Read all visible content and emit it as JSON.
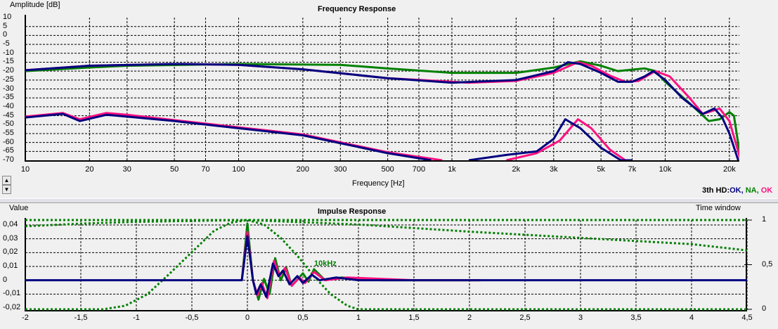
{
  "chart_data": [
    {
      "type": "line",
      "title": "Frequency Response",
      "xlabel": "Frequency [Hz]",
      "ylabel": "Amplitude [dB]",
      "xscale": "log",
      "xlim": [
        10,
        22600
      ],
      "ylim": [
        -70,
        10
      ],
      "yticks": [
        "10",
        "5",
        "0",
        "-5",
        "-10",
        "-15",
        "-20",
        "-25",
        "-30",
        "-35",
        "-40",
        "-45",
        "-50",
        "-55",
        "-60",
        "-65",
        "-70"
      ],
      "xticks": [
        {
          "v": 10,
          "l": "10"
        },
        {
          "v": 20,
          "l": "20"
        },
        {
          "v": 30,
          "l": "30"
        },
        {
          "v": 50,
          "l": "50"
        },
        {
          "v": 70,
          "l": "70"
        },
        {
          "v": 100,
          "l": "100"
        },
        {
          "v": 200,
          "l": "200"
        },
        {
          "v": 300,
          "l": "300"
        },
        {
          "v": 500,
          "l": "500"
        },
        {
          "v": 700,
          "l": "700"
        },
        {
          "v": 1000,
          "l": "1k"
        },
        {
          "v": 2000,
          "l": "2k"
        },
        {
          "v": 3000,
          "l": "3k"
        },
        {
          "v": 5000,
          "l": "5k"
        },
        {
          "v": 7000,
          "l": "7k"
        },
        {
          "v": 10000,
          "l": "10k"
        },
        {
          "v": 20000,
          "l": "20k"
        }
      ],
      "legend": {
        "prefix": "3th HD:",
        "items": [
          {
            "label": "OK, ",
            "color": "#000080"
          },
          {
            "label": "NA, ",
            "color": "#008000"
          },
          {
            "label": "OK",
            "color": "#ff1080"
          }
        ]
      },
      "series": [
        {
          "name": "green",
          "color": "#008000",
          "points": [
            [
              10,
              -20
            ],
            [
              20,
              -18
            ],
            [
              30,
              -17
            ],
            [
              100,
              -16
            ],
            [
              300,
              -16.5
            ],
            [
              500,
              -18.5
            ],
            [
              1000,
              -21
            ],
            [
              2000,
              -21
            ],
            [
              3000,
              -18
            ],
            [
              4000,
              -14.5
            ],
            [
              5000,
              -17
            ],
            [
              6000,
              -20
            ],
            [
              8000,
              -18.5
            ],
            [
              9000,
              -20
            ],
            [
              10000,
              -26
            ],
            [
              13000,
              -38
            ],
            [
              16000,
              -48
            ],
            [
              18000,
              -47
            ],
            [
              20000,
              -43
            ],
            [
              21000,
              -45
            ],
            [
              22600,
              -70
            ]
          ]
        },
        {
          "name": "pink",
          "color": "#ff1080",
          "points": [
            [
              10,
              -19.5
            ],
            [
              20,
              -17
            ],
            [
              50,
              -16
            ],
            [
              100,
              -16.5
            ],
            [
              200,
              -19
            ],
            [
              500,
              -24
            ],
            [
              1200,
              -26.5
            ],
            [
              2000,
              -25.5
            ],
            [
              3000,
              -21
            ],
            [
              3900,
              -15
            ],
            [
              4500,
              -17
            ],
            [
              5500,
              -22.5
            ],
            [
              6500,
              -26
            ],
            [
              7500,
              -25.5
            ],
            [
              9000,
              -20
            ],
            [
              10500,
              -23
            ],
            [
              13000,
              -35
            ],
            [
              15000,
              -44
            ],
            [
              18000,
              -41
            ],
            [
              20000,
              -48
            ],
            [
              22600,
              -70
            ]
          ]
        },
        {
          "name": "blue",
          "color": "#000080",
          "points": [
            [
              10,
              -19.5
            ],
            [
              20,
              -17
            ],
            [
              50,
              -16
            ],
            [
              100,
              -16.5
            ],
            [
              200,
              -19
            ],
            [
              500,
              -24
            ],
            [
              1000,
              -26.5
            ],
            [
              2000,
              -25
            ],
            [
              3000,
              -20
            ],
            [
              3500,
              -15
            ],
            [
              4000,
              -16
            ],
            [
              5000,
              -21
            ],
            [
              6000,
              -26
            ],
            [
              7000,
              -26
            ],
            [
              8000,
              -23
            ],
            [
              8800,
              -20
            ],
            [
              10000,
              -25
            ],
            [
              12000,
              -35
            ],
            [
              15000,
              -44
            ],
            [
              17000,
              -41
            ],
            [
              18500,
              -46
            ],
            [
              20000,
              -55
            ],
            [
              22000,
              -70
            ]
          ]
        },
        {
          "name": "pink-hd",
          "color": "#ff1080",
          "points": [
            [
              10,
              -45.5
            ],
            [
              15,
              -43.5
            ],
            [
              18,
              -47
            ],
            [
              24,
              -43.5
            ],
            [
              30,
              -44.5
            ],
            [
              50,
              -47.5
            ],
            [
              100,
              -51.5
            ],
            [
              200,
              -55.5
            ],
            [
              500,
              -65.5
            ],
            [
              900,
              -70
            ]
          ],
          "points2": [
            [
              1800,
              -70
            ],
            [
              2500,
              -66
            ],
            [
              3200,
              -59
            ],
            [
              3900,
              -47
            ],
            [
              4500,
              -52
            ],
            [
              5500,
              -64
            ],
            [
              6500,
              -70
            ],
            [
              7000,
              -70
            ]
          ]
        },
        {
          "name": "blue-hd",
          "color": "#000080",
          "points": [
            [
              10,
              -46
            ],
            [
              15,
              -44
            ],
            [
              18,
              -48
            ],
            [
              24,
              -44.5
            ],
            [
              30,
              -45.5
            ],
            [
              50,
              -48
            ],
            [
              100,
              -52
            ],
            [
              200,
              -56
            ],
            [
              500,
              -66
            ],
            [
              800,
              -70
            ]
          ],
          "points2": [
            [
              1200,
              -70
            ],
            [
              1800,
              -67
            ],
            [
              2500,
              -65
            ],
            [
              3000,
              -58
            ],
            [
              3400,
              -47
            ],
            [
              4000,
              -52
            ],
            [
              5000,
              -63
            ],
            [
              6200,
              -70
            ],
            [
              7000,
              -70
            ]
          ]
        }
      ]
    },
    {
      "type": "line",
      "title": "Impulse Response",
      "ylabel": "Value",
      "y2label": "Time window",
      "xlim": [
        -2,
        4.5
      ],
      "ylim": [
        -0.02,
        0.04
      ],
      "y2lim": [
        0,
        1
      ],
      "yticks": [
        {
          "v": 0.04,
          "l": "0,04"
        },
        {
          "v": 0.03,
          "l": "0,03"
        },
        {
          "v": 0.02,
          "l": "0,02"
        },
        {
          "v": 0.01,
          "l": "0,01"
        },
        {
          "v": 0,
          "l": "0"
        },
        {
          "v": -0.01,
          "l": "-0,01"
        },
        {
          "v": -0.02,
          "l": "-0,02"
        }
      ],
      "y2ticks": [
        {
          "v": 1,
          "l": "1"
        },
        {
          "v": 0.5,
          "l": "0,5"
        },
        {
          "v": 0,
          "l": "0"
        }
      ],
      "xticks": [
        {
          "v": -2,
          "l": "-2"
        },
        {
          "v": -1.5,
          "l": "-1,5"
        },
        {
          "v": -1,
          "l": "-1"
        },
        {
          "v": -0.5,
          "l": "-0,5"
        },
        {
          "v": 0,
          "l": "0"
        },
        {
          "v": 0.5,
          "l": "0,5"
        },
        {
          "v": 1,
          "l": "1"
        },
        {
          "v": 1.5,
          "l": "1,5"
        },
        {
          "v": 2,
          "l": "2"
        },
        {
          "v": 2.5,
          "l": "2,5"
        },
        {
          "v": 3,
          "l": "3"
        },
        {
          "v": 3.5,
          "l": "3,5"
        },
        {
          "v": 4,
          "l": "4"
        },
        {
          "v": 4.5,
          "l": "4,5"
        }
      ],
      "annotation": "10kHz",
      "series": [
        {
          "name": "green",
          "color": "#008000",
          "points": [
            [
              -0.05,
              0
            ],
            [
              0,
              0.041
            ],
            [
              0.05,
              0
            ],
            [
              0.1,
              -0.014
            ],
            [
              0.15,
              0.001
            ],
            [
              0.2,
              -0.01
            ],
            [
              0.25,
              0.016
            ],
            [
              0.3,
              0
            ],
            [
              0.35,
              0.009
            ],
            [
              0.4,
              -0.004
            ],
            [
              0.5,
              0.005
            ],
            [
              0.55,
              -0.001
            ],
            [
              0.6,
              0.008
            ],
            [
              0.7,
              0
            ],
            [
              0.85,
              0.002
            ],
            [
              1.2,
              0
            ],
            [
              2.1,
              0
            ]
          ]
        },
        {
          "name": "pink",
          "color": "#ff1080",
          "points": [
            [
              -0.05,
              0
            ],
            [
              0,
              0.035
            ],
            [
              0.05,
              0
            ],
            [
              0.09,
              -0.011
            ],
            [
              0.13,
              -0.002
            ],
            [
              0.18,
              -0.013
            ],
            [
              0.24,
              0.014
            ],
            [
              0.29,
              0.003
            ],
            [
              0.34,
              0.009
            ],
            [
              0.4,
              -0.004
            ],
            [
              0.47,
              0.002
            ],
            [
              0.52,
              -0.002
            ],
            [
              0.6,
              0.006
            ],
            [
              0.7,
              0
            ],
            [
              0.9,
              0.002
            ],
            [
              1.5,
              0
            ],
            [
              2.1,
              0
            ]
          ]
        },
        {
          "name": "blue",
          "color": "#000080",
          "points": [
            [
              -2,
              0
            ],
            [
              -0.05,
              0
            ],
            [
              0,
              0.032
            ],
            [
              0.05,
              0
            ],
            [
              0.08,
              -0.01
            ],
            [
              0.12,
              -0.003
            ],
            [
              0.17,
              -0.012
            ],
            [
              0.23,
              0.012
            ],
            [
              0.28,
              0.003
            ],
            [
              0.32,
              0.007
            ],
            [
              0.38,
              -0.003
            ],
            [
              0.45,
              0.003
            ],
            [
              0.5,
              -0.002
            ],
            [
              0.58,
              0.004
            ],
            [
              0.65,
              0
            ],
            [
              0.8,
              0.002
            ],
            [
              1,
              0
            ],
            [
              4.5,
              0
            ]
          ]
        }
      ],
      "windows": [
        {
          "name": "window-flat",
          "points": [
            [
              -2,
              1
            ],
            [
              4.5,
              1
            ]
          ]
        },
        {
          "name": "window-long",
          "points": [
            [
              -2,
              0.93
            ],
            [
              -1.5,
              0.96
            ],
            [
              -1,
              0.98
            ],
            [
              0,
              1
            ],
            [
              1,
              0.95
            ],
            [
              2,
              0.87
            ],
            [
              3,
              0.8
            ],
            [
              4,
              0.73
            ],
            [
              4.5,
              0.66
            ]
          ]
        },
        {
          "name": "window-10khz",
          "points": [
            [
              -2,
              0
            ],
            [
              -1.3,
              0
            ],
            [
              -1.1,
              0.04
            ],
            [
              -0.9,
              0.17
            ],
            [
              -0.7,
              0.4
            ],
            [
              -0.5,
              0.64
            ],
            [
              -0.3,
              0.88
            ],
            [
              -0.15,
              0.97
            ],
            [
              0,
              1
            ],
            [
              0.15,
              0.95
            ],
            [
              0.3,
              0.8
            ],
            [
              0.45,
              0.6
            ],
            [
              0.6,
              0.37
            ],
            [
              0.75,
              0.17
            ],
            [
              0.9,
              0.04
            ],
            [
              1,
              0
            ],
            [
              4.5,
              0
            ]
          ]
        }
      ]
    }
  ]
}
